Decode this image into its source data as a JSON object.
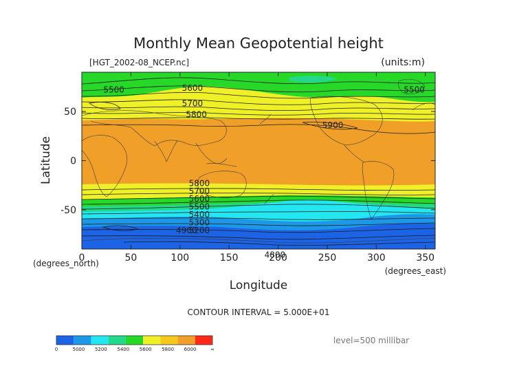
{
  "chart_data": {
    "type": "contour",
    "title": "Monthly Mean Geopotential height",
    "file_label": "[HGT_2002-08_NCEP.nc]",
    "units_label": "(units:m)",
    "xlabel": "Longitude",
    "ylabel": "Latitude",
    "x_unit_label": "(degrees_east)",
    "y_unit_label": "(degrees_north)",
    "xlim": [
      0,
      360
    ],
    "ylim": [
      -90,
      90
    ],
    "x_ticks": [
      0,
      50,
      100,
      150,
      200,
      250,
      300,
      350
    ],
    "y_ticks": [
      -50,
      0,
      50
    ],
    "contour_interval_text": "CONTOUR INTERVAL = 5.000E+01",
    "level_text": "level=500 millibar",
    "contour_labels": [
      {
        "text": "5500",
        "lon": 22,
        "lat": 72
      },
      {
        "text": "5600",
        "lon": 102,
        "lat": 74
      },
      {
        "text": "5700",
        "lon": 102,
        "lat": 58
      },
      {
        "text": "5800",
        "lon": 106,
        "lat": 47
      },
      {
        "text": "5900",
        "lon": 245,
        "lat": 36
      },
      {
        "text": "5500",
        "lon": 328,
        "lat": 72
      },
      {
        "text": "5800",
        "lon": 109,
        "lat": -23
      },
      {
        "text": "5700",
        "lon": 109,
        "lat": -31
      },
      {
        "text": "5600",
        "lon": 109,
        "lat": -39
      },
      {
        "text": "5500",
        "lon": 109,
        "lat": -47
      },
      {
        "text": "5400",
        "lon": 109,
        "lat": -55
      },
      {
        "text": "5300",
        "lon": 109,
        "lat": -63
      },
      {
        "text": "5200",
        "lon": 109,
        "lat": -71
      },
      {
        "text": "4900",
        "lon": 96,
        "lat": -71
      },
      {
        "text": "4800",
        "lon": 186,
        "lat": -96
      }
    ],
    "colorbar": {
      "colors": [
        "#1d63e6",
        "#1d98e6",
        "#23e6f0",
        "#23d88a",
        "#28d828",
        "#f0f028",
        "#f6c81e",
        "#f0a028",
        "#ff2a1a"
      ],
      "labels": [
        "0",
        "5000",
        "5200",
        "5400",
        "5600",
        "5800",
        "6000",
        "∞"
      ]
    }
  }
}
